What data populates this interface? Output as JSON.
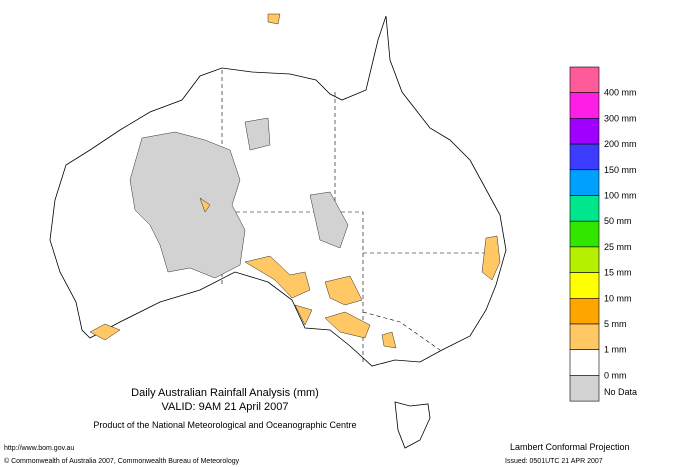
{
  "title": "Daily Australian Rainfall Analysis (mm)",
  "valid": "VALID: 9AM 21 April 2007",
  "product": "Product of the National Meteorological and Oceanographic Centre",
  "url": "http://www.bom.gov.au",
  "copyright": "© Commonwealth of Australia 2007, Commonwealth Bureau of Meteorology",
  "projection": "Lambert Conformal Projection",
  "issued": "Issued: 0501UTC 21 APR 2007",
  "legend": {
    "colors": [
      "#ff5a9a",
      "#ff1ee6",
      "#a000ff",
      "#3c3cff",
      "#00a0ff",
      "#00e68c",
      "#32e600",
      "#b4f000",
      "#ffff00",
      "#ffa500",
      "#ffc864",
      "#ffffff",
      "#d2d2d2"
    ],
    "labels": [
      "400 mm",
      "300 mm",
      "200 mm",
      "150 mm",
      "100 mm",
      "50 mm",
      "25 mm",
      "15 mm",
      "10 mm",
      "5 mm",
      "1 mm",
      "0 mm"
    ],
    "no_data": "No Data"
  }
}
